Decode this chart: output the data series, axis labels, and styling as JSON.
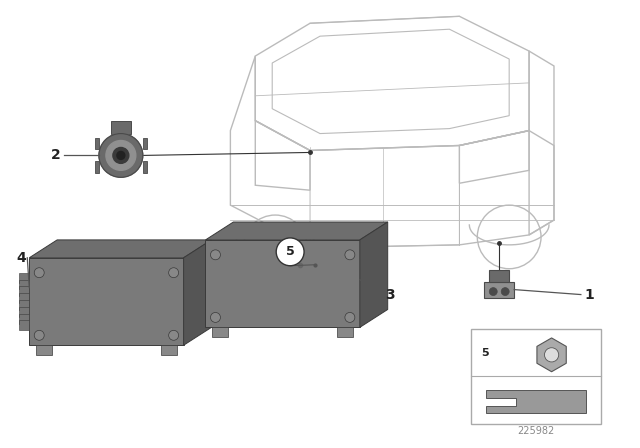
{
  "background_color": "#ffffff",
  "diagram_id": "225982",
  "car_line_color": "#bbbbbb",
  "part_color_light": "#909090",
  "part_color_mid": "#6a6a6a",
  "part_color_dark": "#4a4a4a",
  "line_color": "#333333",
  "text_color": "#222222",
  "label_line_color": "#555555"
}
